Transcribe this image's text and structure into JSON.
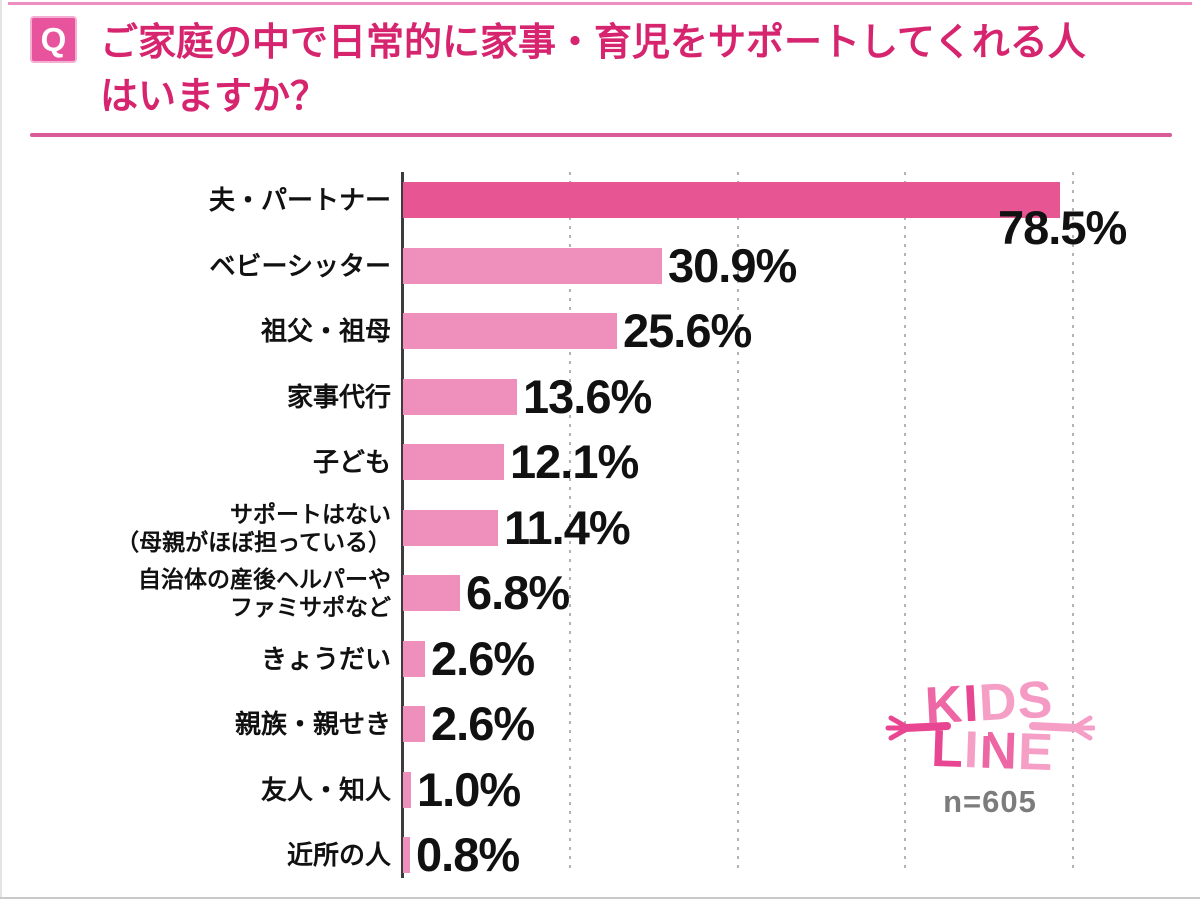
{
  "header": {
    "q_badge": "Q",
    "title_lines": [
      "ご家庭の中で日常的に家事・育児をサポートしてくれる人",
      "はいますか？"
    ]
  },
  "chart_data": {
    "type": "bar",
    "orientation": "horizontal",
    "title": "ご家庭の中で日常的に家事・育児をサポートしてくれる人はいますか？",
    "unit": "%",
    "categories": [
      [
        "夫・パートナー"
      ],
      [
        "ベビーシッター"
      ],
      [
        "祖父・祖母"
      ],
      [
        "家事代行"
      ],
      [
        "子ども"
      ],
      [
        "サポートはない",
        "（母親がほぼ担っている）"
      ],
      [
        "自治体の産後ヘルパーや",
        "ファミサポなど"
      ],
      [
        "きょうだい"
      ],
      [
        "親族・親せき"
      ],
      [
        "友人・知人"
      ],
      [
        "近所の人"
      ]
    ],
    "values": [
      78.5,
      30.9,
      25.6,
      13.6,
      12.1,
      11.4,
      6.8,
      2.6,
      2.6,
      1.0,
      0.8
    ],
    "value_labels": [
      "78.5%",
      "30.9%",
      "25.6%",
      "13.6%",
      "12.1%",
      "11.4%",
      "6.8%",
      "2.6%",
      "2.6%",
      "1.0%",
      "0.8%"
    ],
    "xlim": [
      0,
      95
    ],
    "gridlines_percent": [
      20,
      40,
      60,
      80
    ],
    "grid": "dotted-vertical",
    "legend": "none",
    "highlight_first_bar": true
  },
  "footer": {
    "logo_word_top": "KIDS",
    "logo_word_bottom": "LINE",
    "sample_size": "n=605"
  },
  "colors": {
    "title_pink": "#d6246f",
    "badge_pink": "#e7539c",
    "rule_pink": "#d85a97",
    "bar_primary": "#e75693",
    "bar_secondary": "#ef8fbc",
    "grid_gray": "#b3b3b3",
    "axis_dark": "#3c3c3c",
    "value_black": "#111111",
    "sample_gray": "#7c7c7c",
    "logo_dark_pink": "#e84592",
    "logo_mid_pink": "#ec67a4",
    "logo_light_pink": "#f59fc7"
  }
}
